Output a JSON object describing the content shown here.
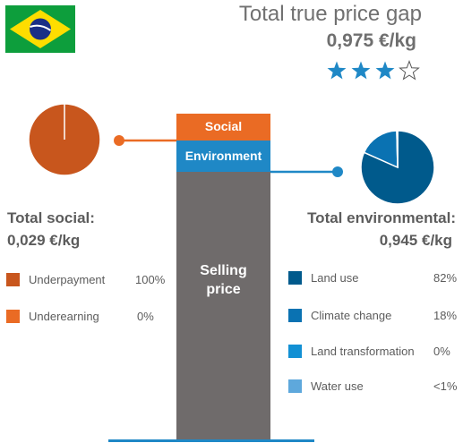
{
  "header": {
    "title": "Total true price gap",
    "value": "0,975 €/kg",
    "rating": 3,
    "rating_max": 4
  },
  "flag": {
    "icon": "brazil-flag-icon",
    "colors": {
      "green": "#0d9e3c",
      "yellow": "#fedd00",
      "blue": "#1b2f86"
    }
  },
  "bar": {
    "social_label": "Social",
    "environment_label": "Environment",
    "selling_label": "Selling price",
    "colors": {
      "social": "#ea6b24",
      "environment": "#1f88c6",
      "selling": "#6f6b6b"
    }
  },
  "social": {
    "title": "Total social:",
    "value": "0,029 €/kg",
    "items": [
      {
        "label": "Underpayment",
        "pct": "100%",
        "color": "#c8561d"
      },
      {
        "label": "Underearning",
        "pct": "0%",
        "color": "#ea6b24"
      }
    ]
  },
  "environmental": {
    "title": "Total environmental:",
    "value": "0,945 €/kg",
    "items": [
      {
        "label": "Land use",
        "pct": "82%",
        "color": "#005a8c"
      },
      {
        "label": "Climate change",
        "pct": "18%",
        "color": "#0a72b2"
      },
      {
        "label": "Land transformation",
        "pct": "0%",
        "color": "#1290d4"
      },
      {
        "label": "Water use",
        "pct": "<1%",
        "color": "#5ea8dc"
      }
    ]
  },
  "chart_data": [
    {
      "type": "pie",
      "categories": [
        "Underpayment",
        "Underearning"
      ],
      "values": [
        100,
        0
      ],
      "colors": [
        "#c8561d",
        "#ea6b24"
      ]
    },
    {
      "type": "pie",
      "categories": [
        "Land use",
        "Climate change",
        "Land transformation",
        "Water use"
      ],
      "values": [
        82,
        18,
        0,
        0.4
      ],
      "colors": [
        "#005a8c",
        "#0a72b2",
        "#1290d4",
        "#5ea8dc"
      ]
    },
    {
      "type": "bar",
      "stacked": true,
      "categories": [
        "Selling price",
        "Environment",
        "Social"
      ],
      "values": [
        null,
        0.945,
        0.029
      ]
    }
  ]
}
